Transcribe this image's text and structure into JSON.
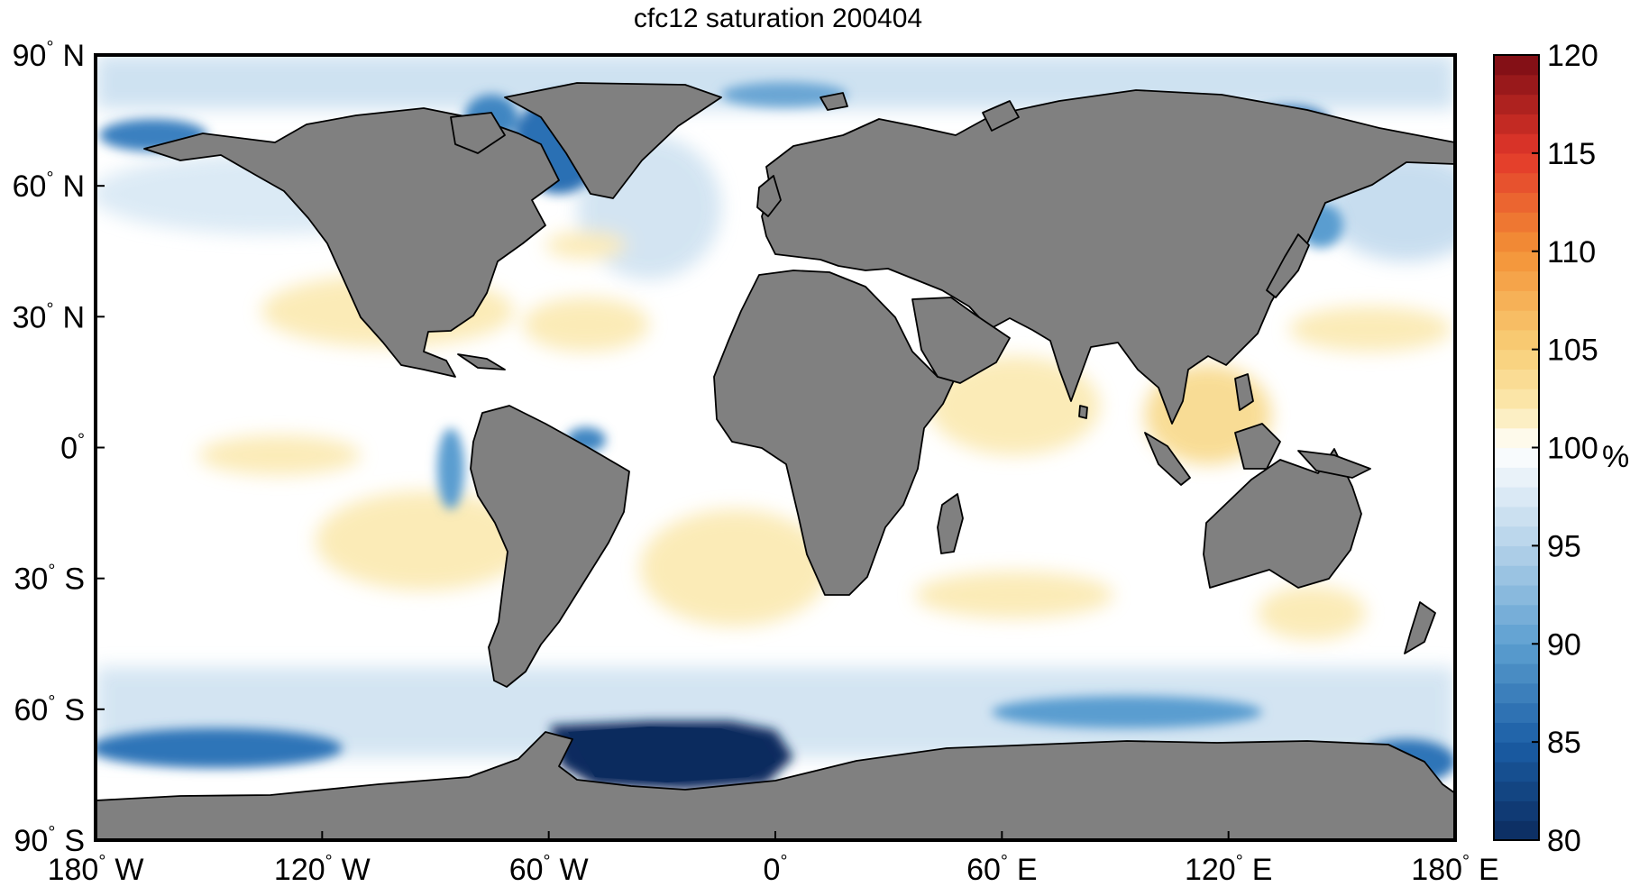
{
  "title": "cfc12 saturation 200404",
  "map": {
    "background_color": "#ffffff",
    "land_color": "#808080",
    "coastline_color": "#000000",
    "x_ticks": [
      {
        "value": -180,
        "num": "180",
        "hemi": "W"
      },
      {
        "value": -120,
        "num": "120",
        "hemi": "W"
      },
      {
        "value": -60,
        "num": "60",
        "hemi": "W"
      },
      {
        "value": 0,
        "num": "0",
        "hemi": ""
      },
      {
        "value": 60,
        "num": "60",
        "hemi": "E"
      },
      {
        "value": 120,
        "num": "120",
        "hemi": "E"
      },
      {
        "value": 180,
        "num": "180",
        "hemi": "E"
      }
    ],
    "y_ticks": [
      {
        "value": 90,
        "num": "90",
        "hemi": "N"
      },
      {
        "value": 60,
        "num": "60",
        "hemi": "N"
      },
      {
        "value": 30,
        "num": "30",
        "hemi": "N"
      },
      {
        "value": 0,
        "num": "0",
        "hemi": ""
      },
      {
        "value": -30,
        "num": "30",
        "hemi": "S"
      },
      {
        "value": -60,
        "num": "60",
        "hemi": "S"
      },
      {
        "value": -90,
        "num": "90",
        "hemi": "S"
      }
    ]
  },
  "colorbar": {
    "min": 80,
    "max": 120,
    "ticks": [
      "80",
      "85",
      "90",
      "95",
      "100",
      "105",
      "110",
      "115",
      "120"
    ],
    "unit": "%",
    "colors": {
      "80": "#0b2b5e",
      "85": "#1b5ea6",
      "90": "#5c9fd0",
      "95": "#b5d2ea",
      "100": "#ffffff",
      "102": "#fbe9b0",
      "105": "#f8cf78",
      "110": "#f39236",
      "115": "#e2372a",
      "120": "#7a0c14"
    }
  }
}
